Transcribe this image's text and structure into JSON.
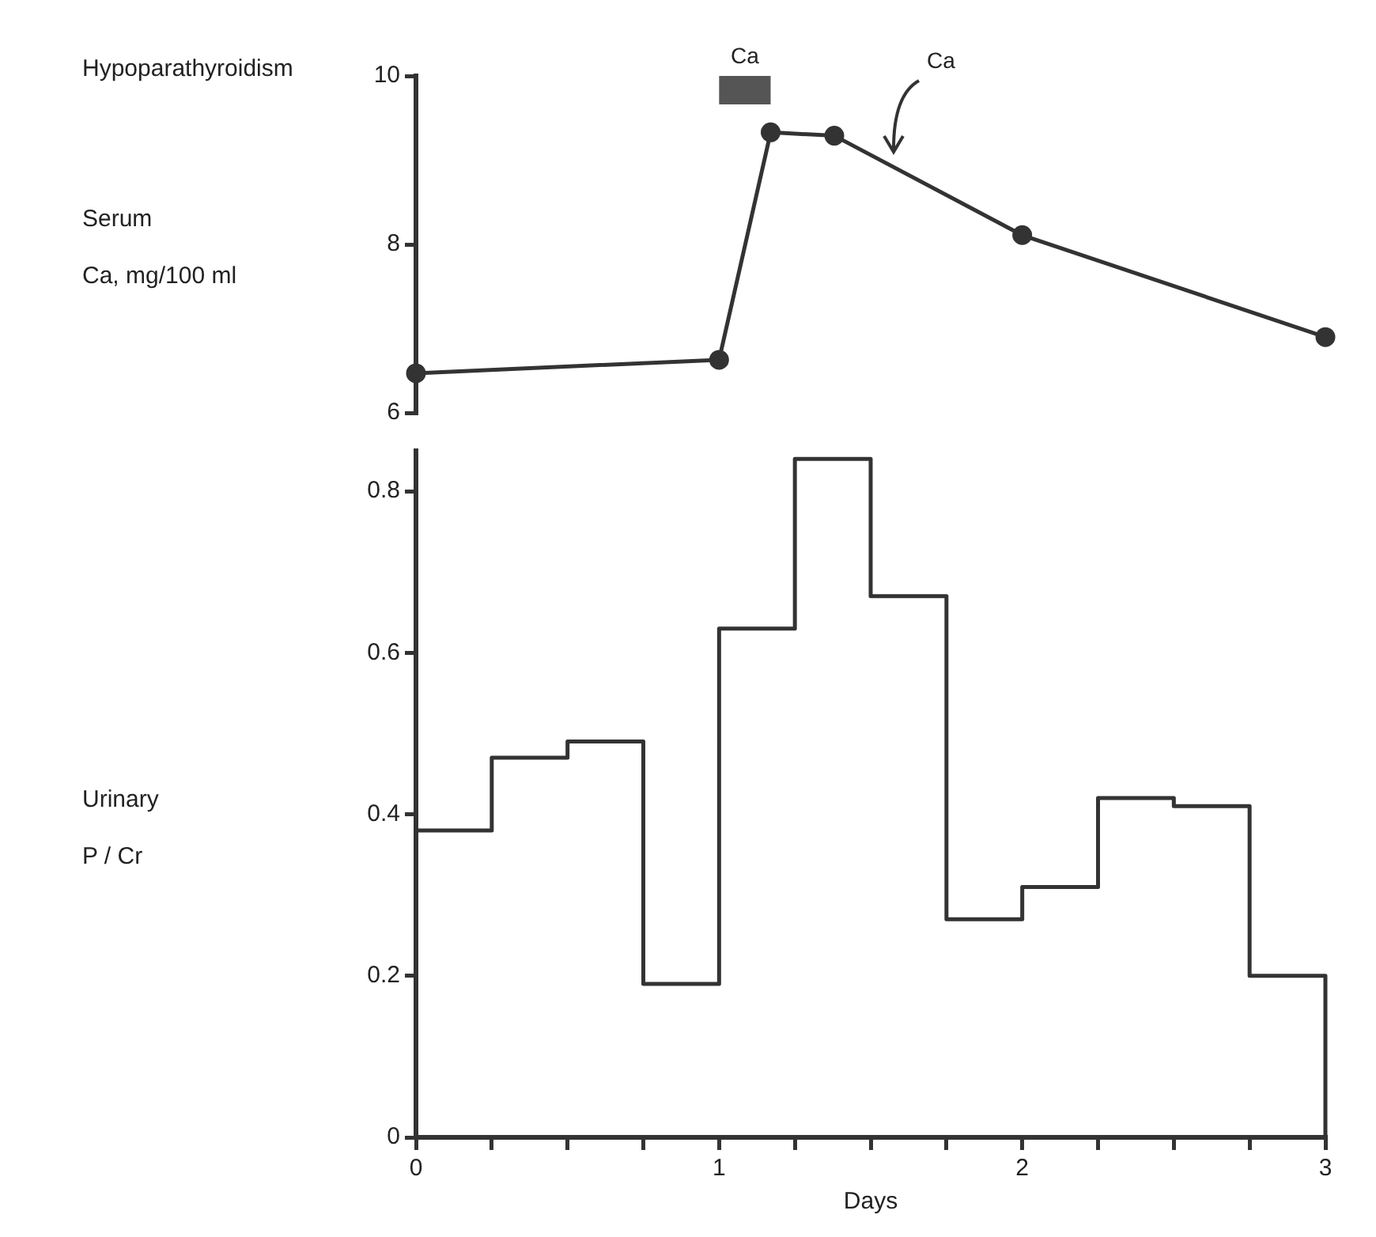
{
  "chart_data": [
    {
      "type": "line",
      "title": "Hypoparathyroidism",
      "ylabel": "Serum\nCa, mg/100 ml",
      "x": [
        0,
        1.0,
        1.17,
        1.38,
        2.0,
        3.0
      ],
      "series": [
        {
          "color": "#333333",
          "values": [
            6.47,
            6.63,
            9.33,
            9.29,
            8.11,
            6.9
          ]
        }
      ],
      "xlim": [
        0,
        3
      ],
      "ylim": [
        6,
        10
      ],
      "yticks": [
        6,
        8,
        10
      ],
      "tick_labels": "y",
      "marker": "circle",
      "line_style": "solid",
      "bands": [
        {
          "axis": "x",
          "from": 1.0,
          "to": 1.17,
          "label": "Ca",
          "color": "#555555"
        }
      ],
      "annotations": [
        "Ca"
      ]
    },
    {
      "type": "histogram",
      "ylabel": "Urinary\nP / Cr",
      "xlabel": "Days",
      "color": "#333333",
      "bins": [
        0,
        0.25,
        0.5,
        0.75,
        1,
        1.25,
        1.5,
        1.75,
        2,
        2.25,
        2.5,
        2.75,
        3
      ],
      "values": [
        0.38,
        0.47,
        0.49,
        0.19,
        0.63,
        0.84,
        0.67,
        0.27,
        0.31,
        0.42,
        0.41,
        0.2
      ],
      "xlim": [
        0,
        3
      ],
      "ylim": [
        0,
        0.85
      ],
      "yticks": [
        0,
        0.2,
        0.4,
        0.6,
        0.8
      ],
      "xticks": [
        0,
        {
          "value": 0.25,
          "label": null
        },
        {
          "value": 0.5,
          "label": null
        },
        {
          "value": 0.75,
          "label": null
        },
        1,
        {
          "value": 1.25,
          "label": null
        },
        {
          "value": 1.5,
          "label": null
        },
        {
          "value": 1.75,
          "label": null
        },
        2,
        {
          "value": 2.25,
          "label": null
        },
        {
          "value": 2.5,
          "label": null
        },
        {
          "value": 2.75,
          "label": null
        },
        3
      ]
    }
  ]
}
